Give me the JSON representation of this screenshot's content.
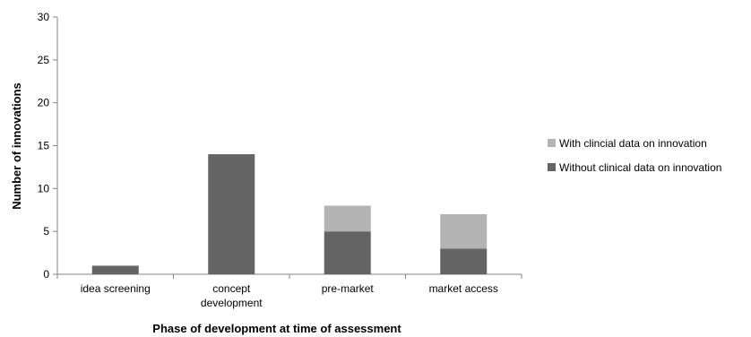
{
  "chart_data": {
    "type": "bar",
    "stacked": true,
    "categories": [
      [
        "idea screening"
      ],
      [
        "concept",
        "development"
      ],
      [
        "pre-market"
      ],
      [
        "market access"
      ]
    ],
    "series": [
      {
        "name": "Without clinical data on innovation",
        "values": [
          1,
          14,
          5,
          3
        ],
        "color": "#646464"
      },
      {
        "name": "With clincial data  on innovation",
        "values": [
          0,
          0,
          3,
          4
        ],
        "color": "#b3b3b3"
      }
    ],
    "xlabel": "Phase of development at time of assessment",
    "ylabel": "Number of innovations",
    "ylim": [
      0,
      30
    ],
    "yticks": [
      0,
      5,
      10,
      15,
      20,
      25,
      30
    ],
    "grid": false,
    "legend": "right"
  }
}
